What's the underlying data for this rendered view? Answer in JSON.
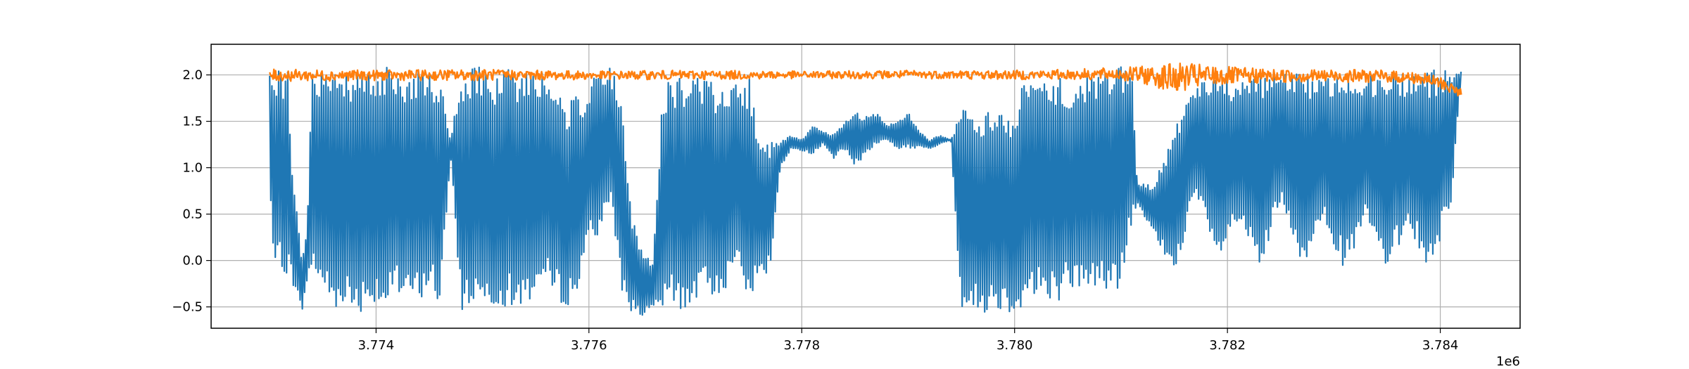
{
  "chart_data": {
    "type": "line",
    "title": "",
    "xlabel": "",
    "ylabel": "",
    "x_offset_label": "1e6",
    "xlim": [
      3.77245,
      3.78475
    ],
    "ylim": [
      -0.73,
      2.33
    ],
    "grid": true,
    "legend": "none",
    "x_ticks": [
      {
        "value": 3.774,
        "label": "3.774"
      },
      {
        "value": 3.776,
        "label": "3.776"
      },
      {
        "value": 3.778,
        "label": "3.778"
      },
      {
        "value": 3.78,
        "label": "3.780"
      },
      {
        "value": 3.782,
        "label": "3.782"
      },
      {
        "value": 3.784,
        "label": "3.784"
      }
    ],
    "y_ticks": [
      {
        "value": -0.5,
        "label": "−0.5"
      },
      {
        "value": 0.0,
        "label": "0.0"
      },
      {
        "value": 0.5,
        "label": "0.5"
      },
      {
        "value": 1.0,
        "label": "1.0"
      },
      {
        "value": 1.5,
        "label": "1.5"
      },
      {
        "value": 2.0,
        "label": "2.0"
      }
    ],
    "series": [
      {
        "color": "#1f77b4",
        "style": "dense-oscillation",
        "x": [
          3.773,
          3.77302,
          3.77305,
          3.7731,
          3.77318,
          3.7732,
          3.7733,
          3.77335,
          3.7734,
          3.7735,
          3.7736,
          3.7737,
          3.7738,
          3.7739,
          3.774,
          3.7741,
          3.7742,
          3.7743,
          3.7744,
          3.7745,
          3.7746,
          3.7747,
          3.7748,
          3.7749,
          3.775,
          3.7751,
          3.7752,
          3.7753,
          3.7754,
          3.7755,
          3.7756,
          3.7757,
          3.7758,
          3.7759,
          3.776,
          3.7761,
          3.7762,
          3.7763,
          3.7764,
          3.7765,
          3.7766,
          3.7767,
          3.7768,
          3.7769,
          3.777,
          3.7771,
          3.7772,
          3.7773,
          3.7774,
          3.7775,
          3.7776,
          3.7777,
          3.7778,
          3.7779,
          3.778,
          3.7781,
          3.7782,
          3.7783,
          3.7784,
          3.7785,
          3.7786,
          3.7787,
          3.7788,
          3.7789,
          3.779,
          3.7791,
          3.7792,
          3.7793,
          3.7794,
          3.7795,
          3.7796,
          3.7797,
          3.7798,
          3.7799,
          3.78,
          3.7801,
          3.7802,
          3.7803,
          3.7804,
          3.7805,
          3.7806,
          3.7807,
          3.7808,
          3.7809,
          3.781,
          3.7811,
          3.78115,
          3.7813,
          3.7815,
          3.7817,
          3.7819,
          3.7821,
          3.7823,
          3.7825,
          3.7827,
          3.7829,
          3.7831,
          3.7833,
          3.7835,
          3.7837,
          3.7839,
          3.7841,
          3.7842
        ],
        "min": [
          1.38,
          -0.13,
          -0.14,
          -0.12,
          -0.15,
          -0.2,
          -0.56,
          -0.3,
          -0.1,
          -0.35,
          -0.55,
          -0.45,
          -0.58,
          -0.52,
          -0.45,
          -0.55,
          -0.4,
          -0.5,
          -0.45,
          -0.3,
          -0.5,
          1.1,
          -0.55,
          -0.5,
          -0.45,
          -0.5,
          -0.48,
          -0.55,
          -0.5,
          -0.35,
          -0.3,
          -0.45,
          -0.48,
          -0.4,
          0.35,
          0.15,
          0.7,
          -0.3,
          -0.55,
          -0.6,
          -0.55,
          -0.58,
          -0.5,
          -0.55,
          -0.45,
          -0.4,
          -0.38,
          -0.3,
          0.15,
          -0.5,
          -0.2,
          -0.15,
          1.0,
          1.2,
          1.18,
          1.15,
          1.25,
          1.1,
          1.2,
          1.0,
          1.15,
          1.25,
          1.3,
          1.2,
          1.2,
          1.22,
          1.2,
          1.25,
          1.3,
          -0.55,
          -0.55,
          -0.58,
          -0.5,
          -0.55,
          -0.58,
          -0.45,
          -0.4,
          -0.4,
          -0.45,
          -0.3,
          -0.35,
          -0.3,
          -0.3,
          -0.35,
          -0.3,
          0.4,
          0.6,
          0.3,
          -0.15,
          0.7,
          -0.05,
          0.4,
          -0.15,
          0.6,
          -0.15,
          0.5,
          -0.15,
          0.4,
          -0.15,
          0.4,
          -0.15,
          0.6,
          2.02
        ],
        "max": [
          2.05,
          2.06,
          2.05,
          2.07,
          2.05,
          1.2,
          0.0,
          0.4,
          2.0,
          2.1,
          2.1,
          2.05,
          2.08,
          2.12,
          2.1,
          2.08,
          2.05,
          2.06,
          2.1,
          2.05,
          2.0,
          1.3,
          2.05,
          2.1,
          2.08,
          2.05,
          2.06,
          2.1,
          2.05,
          2.07,
          2.06,
          2.05,
          1.7,
          1.8,
          1.8,
          2.15,
          2.1,
          1.8,
          0.5,
          0.1,
          0.0,
          1.95,
          2.0,
          1.95,
          2.0,
          2.0,
          1.9,
          1.85,
          1.9,
          2.0,
          1.4,
          1.3,
          1.3,
          1.35,
          1.3,
          1.45,
          1.4,
          1.35,
          1.5,
          1.6,
          1.55,
          1.6,
          1.45,
          1.5,
          1.6,
          1.4,
          1.3,
          1.35,
          1.3,
          1.65,
          1.65,
          1.6,
          1.65,
          1.6,
          1.55,
          2.0,
          2.05,
          2.05,
          2.0,
          1.95,
          2.0,
          2.05,
          2.0,
          2.05,
          2.1,
          2.15,
          0.85,
          0.8,
          1.4,
          1.9,
          2.0,
          1.95,
          2.05,
          2.0,
          2.05,
          1.95,
          2.05,
          2.0,
          2.05,
          2.0,
          2.05,
          2.05,
          2.05
        ]
      },
      {
        "color": "#ff7f0e",
        "style": "noisy-flat",
        "x": [
          3.773,
          3.774,
          3.775,
          3.776,
          3.777,
          3.778,
          3.779,
          3.78,
          3.7805,
          3.781,
          3.7813,
          3.7815,
          3.7817,
          3.7819,
          3.7821,
          3.7825,
          3.783,
          3.7835,
          3.7838,
          3.784,
          3.7841,
          3.7842
        ],
        "min": [
          1.93,
          1.94,
          1.94,
          1.95,
          1.95,
          1.96,
          1.96,
          1.95,
          1.95,
          1.94,
          1.88,
          1.8,
          1.85,
          1.88,
          1.9,
          1.92,
          1.92,
          1.92,
          1.9,
          1.85,
          1.8,
          1.76
        ],
        "max": [
          2.06,
          2.05,
          2.06,
          2.04,
          2.05,
          2.04,
          2.05,
          2.05,
          2.06,
          2.08,
          2.1,
          2.13,
          2.12,
          2.1,
          2.08,
          2.06,
          2.06,
          2.05,
          2.03,
          1.98,
          1.92,
          1.85
        ]
      }
    ]
  }
}
